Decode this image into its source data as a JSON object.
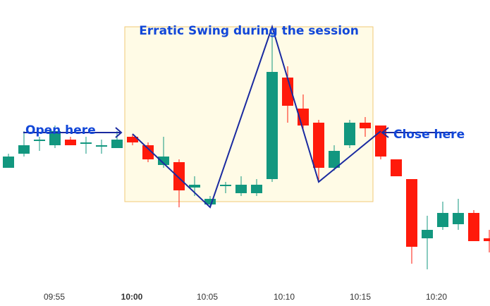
{
  "chart_data": {
    "type": "candlestick",
    "x_ticks": [
      "09:55",
      "10:00",
      "10:05",
      "10:10",
      "10:15",
      "10:20"
    ],
    "emphasized_tick": "10:00",
    "y_range": [
      0,
      100
    ],
    "candles": [
      {
        "open": 43,
        "close": 47,
        "high": 48,
        "low": 43
      },
      {
        "open": 48,
        "close": 51,
        "high": 56,
        "low": 47
      },
      {
        "open": 53,
        "close": 53,
        "high": 54,
        "low": 49
      },
      {
        "open": 51,
        "close": 56,
        "high": 58,
        "low": 50
      },
      {
        "open": 53,
        "close": 51,
        "high": 54,
        "low": 51
      },
      {
        "open": 52,
        "close": 52,
        "high": 54,
        "low": 48
      },
      {
        "open": 51,
        "close": 51,
        "high": 53,
        "low": 48
      },
      {
        "open": 50,
        "close": 53,
        "high": 56,
        "low": 50
      },
      {
        "open": 54,
        "close": 52,
        "high": 55,
        "low": 51
      },
      {
        "open": 51,
        "close": 46,
        "high": 52,
        "low": 45
      },
      {
        "open": 44,
        "close": 47,
        "high": 54,
        "low": 43
      },
      {
        "open": 45,
        "close": 35,
        "high": 46,
        "low": 29
      },
      {
        "open": 36,
        "close": 37,
        "high": 40,
        "low": 33
      },
      {
        "open": 30,
        "close": 32,
        "high": 33,
        "low": 29
      },
      {
        "open": 37,
        "close": 37,
        "high": 38,
        "low": 34
      },
      {
        "open": 34,
        "close": 37,
        "high": 40,
        "low": 33
      },
      {
        "open": 34,
        "close": 37,
        "high": 39,
        "low": 33
      },
      {
        "open": 39,
        "close": 77,
        "high": 91,
        "low": 38
      },
      {
        "open": 75,
        "close": 65,
        "high": 79,
        "low": 59
      },
      {
        "open": 64,
        "close": 58,
        "high": 69,
        "low": 56
      },
      {
        "open": 59,
        "close": 43,
        "high": 60,
        "low": 38
      },
      {
        "open": 43,
        "close": 49,
        "high": 51,
        "low": 42
      },
      {
        "open": 51,
        "close": 59,
        "high": 60,
        "low": 50
      },
      {
        "open": 59,
        "close": 57,
        "high": 61,
        "low": 54
      },
      {
        "open": 58,
        "close": 47,
        "high": 58,
        "low": 46
      },
      {
        "open": 46,
        "close": 40,
        "high": 46,
        "low": 40
      },
      {
        "open": 39,
        "close": 15,
        "high": 39,
        "low": 9
      },
      {
        "open": 18,
        "close": 21,
        "high": 26,
        "low": 7
      },
      {
        "open": 22,
        "close": 27,
        "high": 31,
        "low": 21
      },
      {
        "open": 23,
        "close": 27,
        "high": 32,
        "low": 21
      },
      {
        "open": 27,
        "close": 17,
        "high": 28,
        "low": 17
      },
      {
        "open": 18,
        "close": 17,
        "high": 21,
        "low": 13
      }
    ],
    "swing_path": [
      {
        "candle": 8,
        "value": 55
      },
      {
        "candle": 13,
        "value": 29
      },
      {
        "candle": 17,
        "value": 93
      },
      {
        "candle": 20,
        "value": 38
      },
      {
        "candle": 24,
        "value": 56
      }
    ],
    "highlight": {
      "from_candle": 8,
      "to_candle": 23,
      "value_range": [
        31,
        93
      ],
      "label": "Erratic Swing during the session"
    },
    "open_annotation": {
      "label": "Open here",
      "candle": 8,
      "value": 55
    },
    "close_annotation": {
      "label": "Close here",
      "candle": 24,
      "value": 56
    },
    "colors": {
      "up": "#12977f",
      "down": "#ff1a0b",
      "line": "#1a2aa0",
      "annotation_text": "#1247d8",
      "highlight_fill": "#fffbe6",
      "highlight_border": "#f2c877",
      "tick_text": "#333333"
    }
  }
}
